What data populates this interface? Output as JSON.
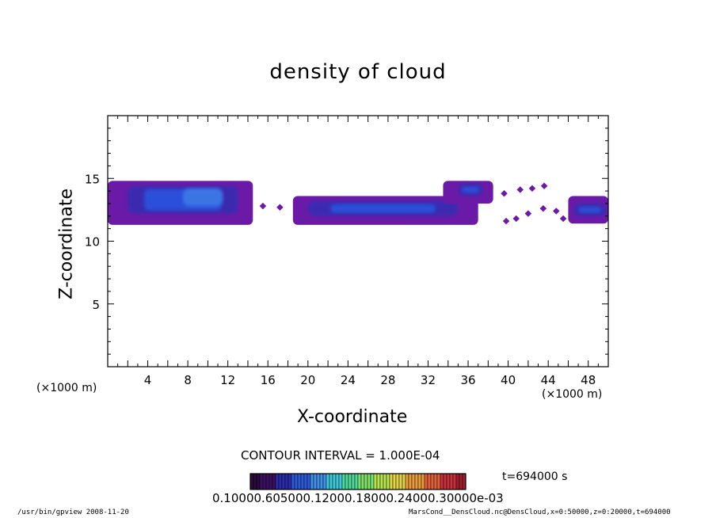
{
  "chart_data": {
    "type": "heatmap",
    "title": "density of cloud",
    "xlabel": "X-coordinate",
    "ylabel": "Z-coordinate",
    "x_unit_left": "(×1000 m)",
    "x_unit_right": "(×1000 m)",
    "xlim": [
      0,
      50
    ],
    "ylim": [
      0,
      20
    ],
    "x_ticks": [
      "4",
      "8",
      "12",
      "16",
      "20",
      "24",
      "28",
      "32",
      "36",
      "40",
      "44",
      "48"
    ],
    "y_ticks": [
      "5",
      "10",
      "15"
    ],
    "x_tick_values": [
      4,
      8,
      12,
      16,
      20,
      24,
      28,
      32,
      36,
      40,
      44,
      48
    ],
    "y_tick_values": [
      5,
      10,
      15
    ],
    "contour_interval": "CONTOUR INTERVAL = 1.000E-04",
    "time_label": "t=694000 s",
    "colorbar_labels_text": "0.10000.605000.12000.18000.24000.30000e-03",
    "colorbar_colors": [
      "#2a0b3a",
      "#3a1060",
      "#2b2aa8",
      "#2f5ad6",
      "#3f8fe6",
      "#3fc6d8",
      "#4fd89a",
      "#7ee06a",
      "#b6e24e",
      "#e0d24a",
      "#e89a3c",
      "#e0603a",
      "#c8303a",
      "#a01e30"
    ],
    "cloud_regions": [
      {
        "x": [
          0,
          14.5
        ],
        "z": [
          11.3,
          14.8
        ],
        "core": [
          2,
          13
        ],
        "core_z": [
          12.2,
          14.4
        ]
      },
      {
        "x": [
          18.5,
          37
        ],
        "z": [
          11.3,
          13.6
        ],
        "core": [
          20,
          35
        ],
        "core_z": [
          12.0,
          13.2
        ]
      },
      {
        "x": [
          33.5,
          38.5
        ],
        "z": [
          13.0,
          14.8
        ],
        "core": [
          35,
          37.5
        ],
        "core_z": [
          13.6,
          14.6
        ]
      },
      {
        "x": [
          46,
          50
        ],
        "z": [
          11.4,
          13.6
        ],
        "core": [
          46.5,
          49.8
        ],
        "core_z": [
          12.0,
          13.0
        ]
      }
    ],
    "cloud_fragments": [
      {
        "x": 15.5,
        "z": 12.8
      },
      {
        "x": 17.2,
        "z": 12.7
      },
      {
        "x": 39.6,
        "z": 13.8
      },
      {
        "x": 41.2,
        "z": 14.1
      },
      {
        "x": 42.4,
        "z": 14.2
      },
      {
        "x": 43.6,
        "z": 14.4
      },
      {
        "x": 39.8,
        "z": 11.6
      },
      {
        "x": 40.8,
        "z": 11.8
      },
      {
        "x": 43.5,
        "z": 12.6
      },
      {
        "x": 44.8,
        "z": 12.4
      },
      {
        "x": 45.5,
        "z": 11.8
      },
      {
        "x": 42.0,
        "z": 12.2
      }
    ],
    "colors": {
      "outer": "#6b1aa8",
      "mid": "#3a2ab0",
      "core": "#2a4fd8",
      "bright": "#3f7fe8"
    }
  },
  "footer": {
    "left": "/usr/bin/gpview   2008-11-20",
    "right": "MarsCond__DensCloud.nc@DensCloud,x=0:50000,z=0:20000,t=694000"
  }
}
